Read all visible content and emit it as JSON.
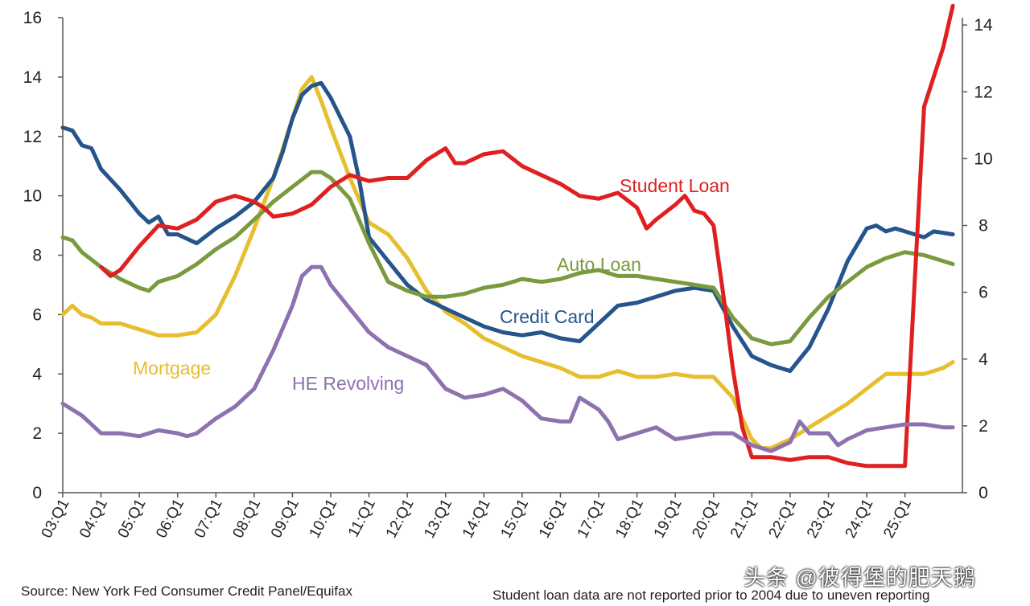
{
  "chart_data": {
    "type": "line",
    "title": "",
    "xlabel": "",
    "ylabel": "",
    "ylim": [
      0,
      16
    ],
    "y2lim": [
      0,
      14.22
    ],
    "yticks": [
      0,
      2,
      4,
      6,
      8,
      10,
      12,
      14,
      16
    ],
    "y2ticks": [
      0,
      2,
      4,
      6,
      8,
      10,
      12,
      14
    ],
    "x_range": [
      2003.0,
      2026.5
    ],
    "x_ticks": [
      {
        "label": "03:Q1",
        "x": 2003.0
      },
      {
        "label": "04:Q1",
        "x": 2004.0
      },
      {
        "label": "05:Q1",
        "x": 2005.0
      },
      {
        "label": "06:Q1",
        "x": 2006.0
      },
      {
        "label": "07:Q1",
        "x": 2007.0
      },
      {
        "label": "08:Q1",
        "x": 2008.0
      },
      {
        "label": "09:Q1",
        "x": 2009.0
      },
      {
        "label": "10:Q1",
        "x": 2010.0
      },
      {
        "label": "11:Q1",
        "x": 2011.0
      },
      {
        "label": "12:Q1",
        "x": 2012.0
      },
      {
        "label": "13:Q1",
        "x": 2013.0
      },
      {
        "label": "14:Q1",
        "x": 2014.0
      },
      {
        "label": "15:Q1",
        "x": 2015.0
      },
      {
        "label": "16:Q1",
        "x": 2016.0
      },
      {
        "label": "17:Q1",
        "x": 2017.0
      },
      {
        "label": "18:Q1",
        "x": 2018.0
      },
      {
        "label": "19:Q1",
        "x": 2019.0
      },
      {
        "label": "20:Q1",
        "x": 2020.0
      },
      {
        "label": "21:Q1",
        "x": 2021.0
      },
      {
        "label": "22:Q1",
        "x": 2022.0
      },
      {
        "label": "23:Q1",
        "x": 2023.0
      },
      {
        "label": "24:Q1",
        "x": 2024.0
      },
      {
        "label": "25:Q1",
        "x": 2025.0
      }
    ],
    "series": [
      {
        "name": "Mortgage",
        "color": "#e6be2e",
        "points": [
          [
            2003.0,
            6.0
          ],
          [
            2003.25,
            6.3
          ],
          [
            2003.5,
            6.0
          ],
          [
            2003.75,
            5.9
          ],
          [
            2004.0,
            5.7
          ],
          [
            2004.5,
            5.7
          ],
          [
            2005.0,
            5.5
          ],
          [
            2005.5,
            5.3
          ],
          [
            2006.0,
            5.3
          ],
          [
            2006.5,
            5.4
          ],
          [
            2007.0,
            6.0
          ],
          [
            2007.5,
            7.3
          ],
          [
            2008.0,
            8.9
          ],
          [
            2008.5,
            10.6
          ],
          [
            2008.75,
            11.6
          ],
          [
            2009.0,
            12.6
          ],
          [
            2009.25,
            13.6
          ],
          [
            2009.5,
            14.0
          ],
          [
            2009.75,
            13.2
          ],
          [
            2010.0,
            12.3
          ],
          [
            2010.5,
            10.6
          ],
          [
            2011.0,
            9.1
          ],
          [
            2011.5,
            8.7
          ],
          [
            2012.0,
            7.9
          ],
          [
            2012.5,
            6.8
          ],
          [
            2013.0,
            6.1
          ],
          [
            2013.5,
            5.7
          ],
          [
            2014.0,
            5.2
          ],
          [
            2014.5,
            4.9
          ],
          [
            2015.0,
            4.6
          ],
          [
            2015.5,
            4.4
          ],
          [
            2016.0,
            4.2
          ],
          [
            2016.5,
            3.9
          ],
          [
            2017.0,
            3.9
          ],
          [
            2017.5,
            4.1
          ],
          [
            2018.0,
            3.9
          ],
          [
            2018.5,
            3.9
          ],
          [
            2019.0,
            4.0
          ],
          [
            2019.5,
            3.9
          ],
          [
            2020.0,
            3.9
          ],
          [
            2020.5,
            3.2
          ],
          [
            2021.0,
            1.8
          ],
          [
            2021.25,
            1.5
          ],
          [
            2021.5,
            1.5
          ],
          [
            2022.0,
            1.8
          ],
          [
            2022.5,
            2.2
          ],
          [
            2023.0,
            2.6
          ],
          [
            2023.5,
            3.0
          ],
          [
            2024.0,
            3.5
          ],
          [
            2024.5,
            4.0
          ],
          [
            2025.0,
            4.0
          ],
          [
            2025.5,
            4.0
          ],
          [
            2026.0,
            4.2
          ],
          [
            2026.25,
            4.4
          ]
        ]
      },
      {
        "name": "Credit Card",
        "color": "#25558a",
        "points": [
          [
            2003.0,
            12.3
          ],
          [
            2003.25,
            12.2
          ],
          [
            2003.5,
            11.7
          ],
          [
            2003.75,
            11.6
          ],
          [
            2004.0,
            10.9
          ],
          [
            2004.5,
            10.2
          ],
          [
            2005.0,
            9.4
          ],
          [
            2005.25,
            9.1
          ],
          [
            2005.5,
            9.3
          ],
          [
            2005.75,
            8.7
          ],
          [
            2006.0,
            8.7
          ],
          [
            2006.5,
            8.4
          ],
          [
            2007.0,
            8.9
          ],
          [
            2007.5,
            9.3
          ],
          [
            2008.0,
            9.8
          ],
          [
            2008.5,
            10.6
          ],
          [
            2008.75,
            11.5
          ],
          [
            2009.0,
            12.6
          ],
          [
            2009.25,
            13.4
          ],
          [
            2009.5,
            13.7
          ],
          [
            2009.75,
            13.8
          ],
          [
            2010.0,
            13.3
          ],
          [
            2010.5,
            12.0
          ],
          [
            2010.75,
            10.5
          ],
          [
            2011.0,
            8.6
          ],
          [
            2011.5,
            7.8
          ],
          [
            2012.0,
            7.0
          ],
          [
            2012.5,
            6.5
          ],
          [
            2013.0,
            6.2
          ],
          [
            2013.5,
            5.9
          ],
          [
            2014.0,
            5.6
          ],
          [
            2014.5,
            5.4
          ],
          [
            2015.0,
            5.3
          ],
          [
            2015.5,
            5.4
          ],
          [
            2016.0,
            5.2
          ],
          [
            2016.5,
            5.1
          ],
          [
            2017.0,
            5.7
          ],
          [
            2017.5,
            6.3
          ],
          [
            2018.0,
            6.4
          ],
          [
            2018.5,
            6.6
          ],
          [
            2019.0,
            6.8
          ],
          [
            2019.5,
            6.9
          ],
          [
            2020.0,
            6.8
          ],
          [
            2020.5,
            5.6
          ],
          [
            2021.0,
            4.6
          ],
          [
            2021.5,
            4.3
          ],
          [
            2022.0,
            4.1
          ],
          [
            2022.5,
            4.9
          ],
          [
            2023.0,
            6.2
          ],
          [
            2023.5,
            7.8
          ],
          [
            2024.0,
            8.9
          ],
          [
            2024.25,
            9.0
          ],
          [
            2024.5,
            8.8
          ],
          [
            2024.75,
            8.9
          ],
          [
            2025.0,
            8.8
          ],
          [
            2025.5,
            8.6
          ],
          [
            2025.75,
            8.8
          ],
          [
            2026.25,
            8.7
          ]
        ]
      },
      {
        "name": "Auto Loan",
        "color": "#7a9a3e",
        "points": [
          [
            2003.0,
            8.6
          ],
          [
            2003.25,
            8.5
          ],
          [
            2003.5,
            8.1
          ],
          [
            2004.0,
            7.6
          ],
          [
            2004.5,
            7.2
          ],
          [
            2005.0,
            6.9
          ],
          [
            2005.25,
            6.8
          ],
          [
            2005.5,
            7.1
          ],
          [
            2006.0,
            7.3
          ],
          [
            2006.5,
            7.7
          ],
          [
            2007.0,
            8.2
          ],
          [
            2007.5,
            8.6
          ],
          [
            2008.0,
            9.2
          ],
          [
            2008.5,
            9.8
          ],
          [
            2009.0,
            10.3
          ],
          [
            2009.5,
            10.8
          ],
          [
            2009.75,
            10.8
          ],
          [
            2010.0,
            10.6
          ],
          [
            2010.5,
            9.9
          ],
          [
            2011.0,
            8.4
          ],
          [
            2011.5,
            7.1
          ],
          [
            2012.0,
            6.8
          ],
          [
            2012.5,
            6.6
          ],
          [
            2013.0,
            6.6
          ],
          [
            2013.5,
            6.7
          ],
          [
            2014.0,
            6.9
          ],
          [
            2014.5,
            7.0
          ],
          [
            2015.0,
            7.2
          ],
          [
            2015.5,
            7.1
          ],
          [
            2016.0,
            7.2
          ],
          [
            2016.5,
            7.4
          ],
          [
            2017.0,
            7.5
          ],
          [
            2017.5,
            7.3
          ],
          [
            2018.0,
            7.3
          ],
          [
            2018.5,
            7.2
          ],
          [
            2019.0,
            7.1
          ],
          [
            2019.5,
            7.0
          ],
          [
            2020.0,
            6.9
          ],
          [
            2020.5,
            5.9
          ],
          [
            2021.0,
            5.2
          ],
          [
            2021.5,
            5.0
          ],
          [
            2022.0,
            5.1
          ],
          [
            2022.5,
            5.9
          ],
          [
            2023.0,
            6.6
          ],
          [
            2023.5,
            7.1
          ],
          [
            2024.0,
            7.6
          ],
          [
            2024.5,
            7.9
          ],
          [
            2025.0,
            8.1
          ],
          [
            2025.5,
            8.0
          ],
          [
            2026.0,
            7.8
          ],
          [
            2026.25,
            7.7
          ]
        ]
      },
      {
        "name": "Student Loan",
        "color": "#e02020",
        "points": [
          [
            2004.0,
            7.6
          ],
          [
            2004.25,
            7.3
          ],
          [
            2004.5,
            7.5
          ],
          [
            2005.0,
            8.3
          ],
          [
            2005.5,
            9.0
          ],
          [
            2006.0,
            8.9
          ],
          [
            2006.5,
            9.2
          ],
          [
            2007.0,
            9.8
          ],
          [
            2007.5,
            10.0
          ],
          [
            2008.0,
            9.8
          ],
          [
            2008.25,
            9.6
          ],
          [
            2008.5,
            9.3
          ],
          [
            2009.0,
            9.4
          ],
          [
            2009.5,
            9.7
          ],
          [
            2010.0,
            10.3
          ],
          [
            2010.5,
            10.7
          ],
          [
            2011.0,
            10.5
          ],
          [
            2011.5,
            10.6
          ],
          [
            2012.0,
            10.6
          ],
          [
            2012.5,
            11.2
          ],
          [
            2013.0,
            11.6
          ],
          [
            2013.25,
            11.1
          ],
          [
            2013.5,
            11.1
          ],
          [
            2014.0,
            11.4
          ],
          [
            2014.5,
            11.5
          ],
          [
            2015.0,
            11.0
          ],
          [
            2015.5,
            10.7
          ],
          [
            2016.0,
            10.4
          ],
          [
            2016.5,
            10.0
          ],
          [
            2017.0,
            9.9
          ],
          [
            2017.5,
            10.1
          ],
          [
            2018.0,
            9.6
          ],
          [
            2018.25,
            8.9
          ],
          [
            2018.5,
            9.2
          ],
          [
            2019.0,
            9.7
          ],
          [
            2019.25,
            10.0
          ],
          [
            2019.5,
            9.5
          ],
          [
            2019.75,
            9.4
          ],
          [
            2020.0,
            9.0
          ],
          [
            2020.25,
            6.7
          ],
          [
            2020.5,
            4.2
          ],
          [
            2020.75,
            2.2
          ],
          [
            2021.0,
            1.2
          ],
          [
            2021.5,
            1.2
          ],
          [
            2022.0,
            1.1
          ],
          [
            2022.5,
            1.2
          ],
          [
            2023.0,
            1.2
          ],
          [
            2023.5,
            1.0
          ],
          [
            2024.0,
            0.9
          ],
          [
            2024.5,
            0.9
          ],
          [
            2024.75,
            0.9
          ],
          [
            2025.0,
            0.9
          ],
          [
            2025.25,
            7.0
          ],
          [
            2025.5,
            13.0
          ],
          [
            2026.0,
            15.0
          ],
          [
            2026.25,
            16.4
          ]
        ]
      },
      {
        "name": "HE Revolving",
        "color": "#8e72b0",
        "points": [
          [
            2003.0,
            3.0
          ],
          [
            2003.5,
            2.6
          ],
          [
            2004.0,
            2.0
          ],
          [
            2004.5,
            2.0
          ],
          [
            2005.0,
            1.9
          ],
          [
            2005.5,
            2.1
          ],
          [
            2006.0,
            2.0
          ],
          [
            2006.25,
            1.9
          ],
          [
            2006.5,
            2.0
          ],
          [
            2007.0,
            2.5
          ],
          [
            2007.5,
            2.9
          ],
          [
            2008.0,
            3.5
          ],
          [
            2008.5,
            4.8
          ],
          [
            2009.0,
            6.3
          ],
          [
            2009.25,
            7.3
          ],
          [
            2009.5,
            7.6
          ],
          [
            2009.75,
            7.6
          ],
          [
            2010.0,
            7.0
          ],
          [
            2010.5,
            6.2
          ],
          [
            2011.0,
            5.4
          ],
          [
            2011.5,
            4.9
          ],
          [
            2012.0,
            4.6
          ],
          [
            2012.5,
            4.3
          ],
          [
            2013.0,
            3.5
          ],
          [
            2013.5,
            3.2
          ],
          [
            2014.0,
            3.3
          ],
          [
            2014.5,
            3.5
          ],
          [
            2015.0,
            3.1
          ],
          [
            2015.5,
            2.5
          ],
          [
            2016.0,
            2.4
          ],
          [
            2016.25,
            2.4
          ],
          [
            2016.5,
            3.2
          ],
          [
            2017.0,
            2.8
          ],
          [
            2017.25,
            2.4
          ],
          [
            2017.5,
            1.8
          ],
          [
            2018.0,
            2.0
          ],
          [
            2018.5,
            2.2
          ],
          [
            2019.0,
            1.8
          ],
          [
            2019.5,
            1.9
          ],
          [
            2020.0,
            2.0
          ],
          [
            2020.5,
            2.0
          ],
          [
            2021.0,
            1.6
          ],
          [
            2021.5,
            1.4
          ],
          [
            2022.0,
            1.7
          ],
          [
            2022.25,
            2.4
          ],
          [
            2022.5,
            2.0
          ],
          [
            2023.0,
            2.0
          ],
          [
            2023.25,
            1.6
          ],
          [
            2023.5,
            1.8
          ],
          [
            2024.0,
            2.1
          ],
          [
            2024.5,
            2.2
          ],
          [
            2025.0,
            2.3
          ],
          [
            2025.5,
            2.3
          ],
          [
            2026.0,
            2.2
          ],
          [
            2026.25,
            2.2
          ]
        ]
      }
    ],
    "series_labels": [
      {
        "text": "Student Loan",
        "series": "Student Loan"
      },
      {
        "text": "Auto Loan",
        "series": "Auto Loan"
      },
      {
        "text": "Credit Card",
        "series": "Credit Card"
      },
      {
        "text": "Mortgage",
        "series": "Mortgage"
      },
      {
        "text": "HE Revolving",
        "series": "HE Revolving"
      }
    ],
    "axis_color": "#555555"
  },
  "footer": {
    "source": "Source: New York Fed Consumer Credit Panel/Equifax",
    "note": "Student loan data are not reported prior to 2004 due to uneven reporting"
  },
  "watermark": "头条 @彼得堡的肥天鹅"
}
